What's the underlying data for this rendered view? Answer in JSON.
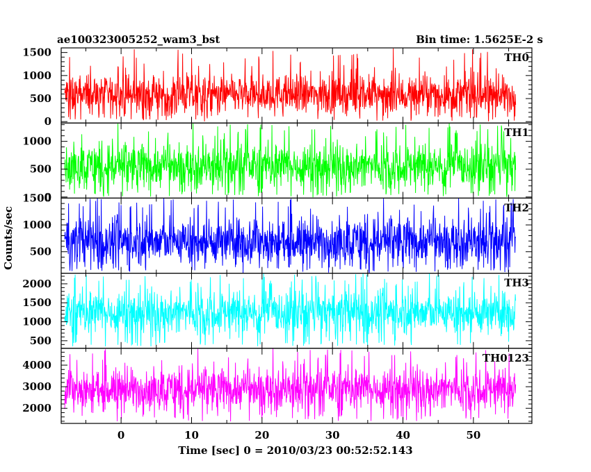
{
  "header": {
    "title": "ae100323005252_wam3_bst",
    "bin_time": "Bin time: 1.5625E-2 s"
  },
  "chart_data": {
    "type": "line",
    "xlabel": "Time [sec] 0 = 2010/03/23 00:52:52.143",
    "ylabel": "Counts/sec",
    "xlim": [
      -8.5,
      58.3
    ],
    "x_ticks": [
      0,
      10,
      20,
      30,
      40,
      50
    ],
    "x_range_data": [
      -8,
      56
    ],
    "panels": [
      {
        "name": "TH0",
        "color": "#ff0000",
        "ylim": [
          -30,
          1600
        ],
        "y_ticks": [
          0,
          500,
          1000,
          1500
        ],
        "mean": 580,
        "low": 130,
        "high": 1150,
        "spike": 1600
      },
      {
        "name": "TH1",
        "color": "#00ff00",
        "ylim": [
          -20,
          1330
        ],
        "y_ticks": [
          0,
          500,
          1000
        ],
        "mean": 560,
        "low": 110,
        "high": 1080,
        "spike": 1330
      },
      {
        "name": "TH2",
        "color": "#0000ff",
        "ylim": [
          100,
          1500
        ],
        "y_ticks": [
          500,
          1000,
          1500
        ],
        "mean": 700,
        "low": 220,
        "high": 1300,
        "spike": 1500
      },
      {
        "name": "TH3",
        "color": "#00ffff",
        "ylim": [
          300,
          2280
        ],
        "y_ticks": [
          500,
          1000,
          1500,
          2000
        ],
        "mean": 1250,
        "low": 500,
        "high": 1900,
        "spike": 2280
      },
      {
        "name": "TH0123",
        "color": "#ff00ff",
        "ylim": [
          1300,
          4780
        ],
        "y_ticks": [
          2000,
          3000,
          4000
        ],
        "mean": 2900,
        "low": 1750,
        "high": 4100,
        "spike": 4780
      }
    ]
  }
}
